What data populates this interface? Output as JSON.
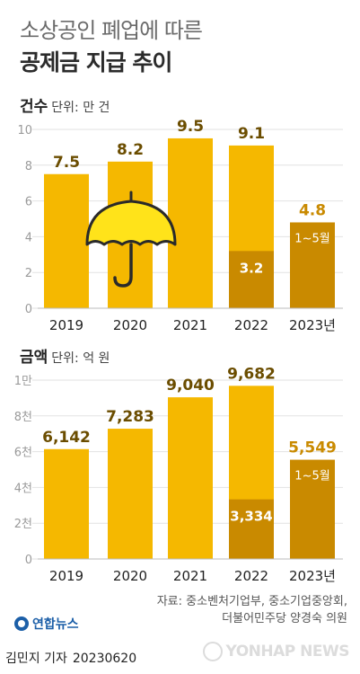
{
  "title_line1": "소상공인 폐업에 따른",
  "title_line2": "공제금 지급 추이",
  "colors": {
    "bar": "#F5B800",
    "bar_dark": "#C98A00",
    "axis_text": "#9a9a9a",
    "label_dark": "#6b4d00"
  },
  "chart_data": [
    {
      "type": "bar",
      "title": "건수",
      "unit_label": "단위: 만 건",
      "categories": [
        "2019",
        "2020",
        "2021",
        "2022",
        "2023년"
      ],
      "values": [
        7.5,
        8.2,
        9.5,
        9.1,
        4.8
      ],
      "value_labels": [
        "7.5",
        "8.2",
        "9.5",
        "9.1",
        "4.8"
      ],
      "sub_values": [
        null,
        null,
        null,
        3.2,
        null
      ],
      "sub_value_labels": [
        "",
        "",
        "",
        "3.2",
        ""
      ],
      "annotation": "1~5월",
      "y_ticks": [
        0,
        2,
        4,
        6,
        8,
        10
      ],
      "y_tick_labels": [
        "0",
        "2",
        "4",
        "6",
        "8",
        "10"
      ],
      "ylim": [
        0,
        10
      ]
    },
    {
      "type": "bar",
      "title": "금액",
      "unit_label": "단위: 억 원",
      "categories": [
        "2019",
        "2020",
        "2021",
        "2022",
        "2023년"
      ],
      "values": [
        6142,
        7283,
        9040,
        9682,
        5549
      ],
      "value_labels": [
        "6,142",
        "7,283",
        "9,040",
        "9,682",
        "5,549"
      ],
      "sub_values": [
        null,
        null,
        null,
        3334,
        null
      ],
      "sub_value_labels": [
        "",
        "",
        "",
        "3,334",
        ""
      ],
      "annotation": "1~5월",
      "y_ticks": [
        0,
        2000,
        4000,
        6000,
        8000,
        10000
      ],
      "y_tick_labels": [
        "0",
        "2천",
        "4천",
        "6천",
        "8천",
        "1만"
      ],
      "ylim": [
        0,
        10000
      ]
    }
  ],
  "source_line1": "자료: 중소벤처기업부, 중소기업중앙회,",
  "source_line2": "더불어민주당 양경숙 의원",
  "agency": "연합뉴스",
  "reporter": "김민지 기자",
  "date": "20230620",
  "watermark": "YONHAP NEWS"
}
